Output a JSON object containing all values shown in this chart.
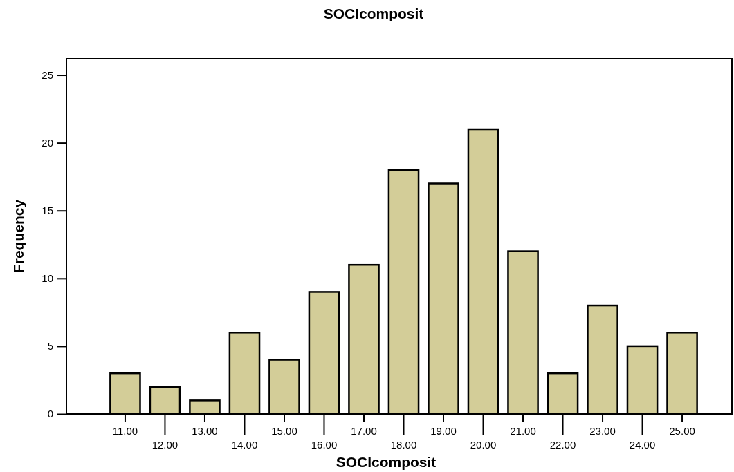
{
  "chart_data": {
    "type": "bar",
    "title": "SOCIcomposit",
    "xlabel": "SOCIcomposit",
    "ylabel": "Frequency",
    "categories": [
      "11.00",
      "12.00",
      "13.00",
      "14.00",
      "15.00",
      "16.00",
      "17.00",
      "18.00",
      "19.00",
      "20.00",
      "21.00",
      "22.00",
      "23.00",
      "24.00",
      "25.00"
    ],
    "values": [
      3,
      2,
      1,
      6,
      4,
      9,
      11,
      18,
      17,
      21,
      12,
      3,
      8,
      5,
      6
    ],
    "color": "#d3cd98",
    "ylim": [
      0,
      26.2
    ],
    "yticks": [
      0,
      5,
      10,
      15,
      20,
      25
    ],
    "grid": false
  }
}
